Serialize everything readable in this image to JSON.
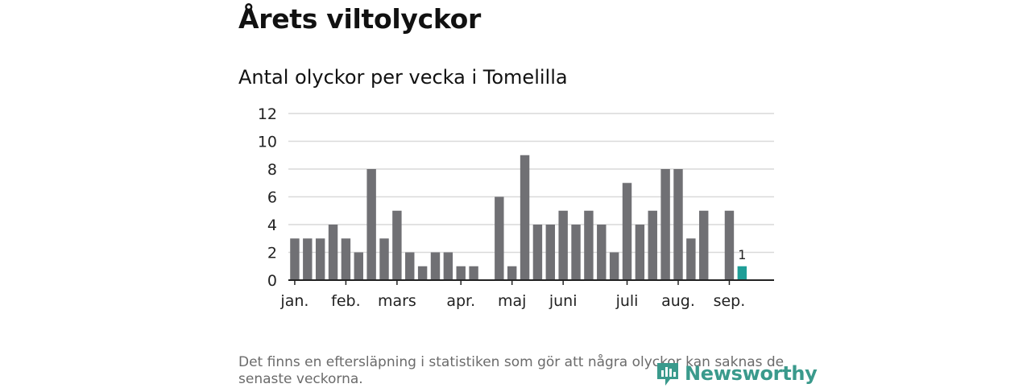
{
  "heading": "Årets viltolyckor",
  "subtitle": "Antal olyckor per vecka i Tomelilla",
  "footnote": "Det finns en eftersläpning i statistiken som gör att några olyckor kan saknas de senaste veckorna.",
  "brand": {
    "name": "Newsworthy",
    "icon": "newsworthy-logo-icon",
    "color": "#3a9a8c"
  },
  "chart_data": {
    "type": "bar",
    "title": "Antal olyckor per vecka i Tomelilla",
    "x": [
      1,
      2,
      3,
      4,
      5,
      6,
      7,
      8,
      9,
      10,
      11,
      12,
      13,
      14,
      15,
      16,
      17,
      18,
      19,
      20,
      21,
      22,
      23,
      24,
      25,
      26,
      27,
      28,
      29,
      30,
      31,
      32,
      33,
      34,
      35,
      36,
      37,
      38
    ],
    "values": [
      3,
      3,
      3,
      4,
      3,
      2,
      8,
      3,
      5,
      2,
      1,
      2,
      2,
      1,
      1,
      null,
      6,
      1,
      9,
      4,
      4,
      5,
      4,
      5,
      4,
      2,
      7,
      4,
      5,
      8,
      8,
      3,
      5,
      null,
      5,
      1,
      null,
      null
    ],
    "month_labels": [
      {
        "label": "jan.",
        "week": 1
      },
      {
        "label": "feb.",
        "week": 5
      },
      {
        "label": "mars",
        "week": 9
      },
      {
        "label": "apr.",
        "week": 14
      },
      {
        "label": "maj",
        "week": 18
      },
      {
        "label": "juni",
        "week": 22
      },
      {
        "label": "juli",
        "week": 27
      },
      {
        "label": "aug.",
        "week": 31
      },
      {
        "label": "sep.",
        "week": 35
      }
    ],
    "ylim": [
      0,
      12
    ],
    "yticks": [
      0,
      2,
      4,
      6,
      8,
      10,
      12
    ],
    "grid": true,
    "highlight": {
      "week": 36,
      "value": 1,
      "label": "1"
    },
    "colors": {
      "bar": "#707074",
      "highlight": "#1f9e97",
      "grid": "#d9d9d9",
      "axis": "#222222"
    }
  }
}
